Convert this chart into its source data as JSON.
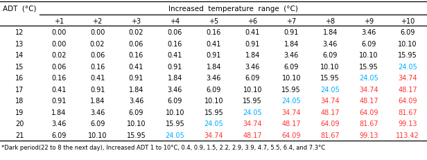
{
  "title": "Increased  temperature  range  (°C)",
  "col_header": [
    "+1",
    "+2",
    "+3",
    "+4",
    "+5",
    "+6",
    "+7",
    "+8",
    "+9",
    "+10"
  ],
  "row_header_label": "ADT  (°C)",
  "rows": [
    {
      "adt": "12",
      "vals": [
        "0.00",
        "0.00",
        "0.02",
        "0.06",
        "0.16",
        "0.41",
        "0.91",
        "1.84",
        "3.46",
        "6.09"
      ]
    },
    {
      "adt": "13",
      "vals": [
        "0.00",
        "0.02",
        "0.06",
        "0.16",
        "0.41",
        "0.91",
        "1.84",
        "3.46",
        "6.09",
        "10.10"
      ]
    },
    {
      "adt": "14",
      "vals": [
        "0.02",
        "0.06",
        "0.16",
        "0.41",
        "0.91",
        "1.84",
        "3.46",
        "6.09",
        "10.10",
        "15.95"
      ]
    },
    {
      "adt": "15",
      "vals": [
        "0.06",
        "0.16",
        "0.41",
        "0.91",
        "1.84",
        "3.46",
        "6.09",
        "10.10",
        "15.95",
        "24.05"
      ]
    },
    {
      "adt": "16",
      "vals": [
        "0.16",
        "0.41",
        "0.91",
        "1.84",
        "3.46",
        "6.09",
        "10.10",
        "15.95",
        "24.05",
        "34.74"
      ]
    },
    {
      "adt": "17",
      "vals": [
        "0.41",
        "0.91",
        "1.84",
        "3.46",
        "6.09",
        "10.10",
        "15.95",
        "24.05",
        "34.74",
        "48.17"
      ]
    },
    {
      "adt": "18",
      "vals": [
        "0.91",
        "1.84",
        "3.46",
        "6.09",
        "10.10",
        "15.95",
        "24.05",
        "34.74",
        "48.17",
        "64.09"
      ]
    },
    {
      "adt": "19",
      "vals": [
        "1.84",
        "3.46",
        "6.09",
        "10.10",
        "15.95",
        "24.05",
        "34.74",
        "48.17",
        "64.09",
        "81.67"
      ]
    },
    {
      "adt": "20",
      "vals": [
        "3.46",
        "6.09",
        "10.10",
        "15.95",
        "24.05",
        "34.74",
        "48.17",
        "64.09",
        "81.67",
        "99.13"
      ]
    },
    {
      "adt": "21",
      "vals": [
        "6.09",
        "10.10",
        "15.95",
        "24.05",
        "34.74",
        "48.17",
        "64.09",
        "81.67",
        "99.13",
        "113.42"
      ]
    }
  ],
  "blue_threshold": 24.05,
  "red_threshold": 34.74,
  "blue_color": "#00AAFF",
  "red_color": "#FF3333",
  "black_color": "#000000",
  "footnote": "*Dark period(22 to 8 the next day), Increased ADT 1 to 10°C, 0.4, 0.9, 1.5, 2.2, 2.9, 3.9, 4.7, 5.5, 6.4, and 7.3°C",
  "bg_color": "#FFFFFF",
  "font_size": 7.0,
  "header_font_size": 7.5,
  "footnote_font_size": 6.0,
  "fig_width": 6.16,
  "fig_height": 2.32,
  "dpi": 100
}
